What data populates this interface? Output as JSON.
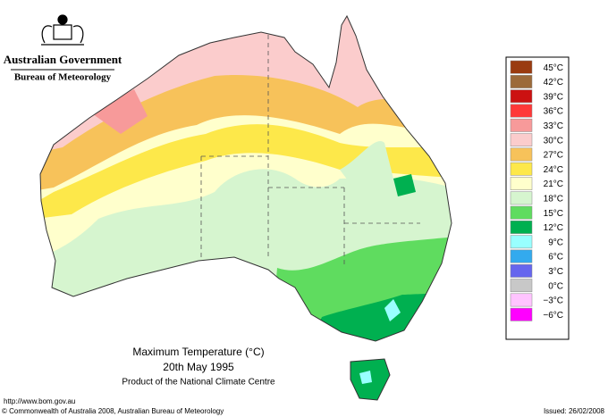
{
  "header": {
    "title": "Australian Government",
    "subtitle": "Bureau of Meteorology"
  },
  "map": {
    "title": "Maximum Temperature (°C)",
    "date": "20th May 1995",
    "product": "Product of the National Climate Centre"
  },
  "legend": {
    "items": [
      {
        "label": "45°C",
        "color": "#9a3b10"
      },
      {
        "label": "42°C",
        "color": "#9c6a3a"
      },
      {
        "label": "39°C",
        "color": "#cc1111"
      },
      {
        "label": "36°C",
        "color": "#ff3838"
      },
      {
        "label": "33°C",
        "color": "#f79a9a"
      },
      {
        "label": "30°C",
        "color": "#fbcccc"
      },
      {
        "label": "27°C",
        "color": "#f7c25a"
      },
      {
        "label": "24°C",
        "color": "#fde84a"
      },
      {
        "label": "21°C",
        "color": "#ffffcc"
      },
      {
        "label": "18°C",
        "color": "#d6f5cf"
      },
      {
        "label": "15°C",
        "color": "#5fdc5f"
      },
      {
        "label": "12°C",
        "color": "#00b050"
      },
      {
        "label": "9°C",
        "color": "#99ffff"
      },
      {
        "label": "6°C",
        "color": "#33aaee"
      },
      {
        "label": "3°C",
        "color": "#6666ee"
      },
      {
        "label": "0°C",
        "color": "#c8c8c8"
      },
      {
        "label": "−3°C",
        "color": "#ffc4ff"
      },
      {
        "label": "−6°C",
        "color": "#ff00ff"
      }
    ]
  },
  "footer": {
    "url": "http://www.bom.gov.au",
    "copyright": "© Commonwealth of Australia 2008, Australian Bureau of Meteorology",
    "issued": "Issued: 26/02/2008"
  }
}
